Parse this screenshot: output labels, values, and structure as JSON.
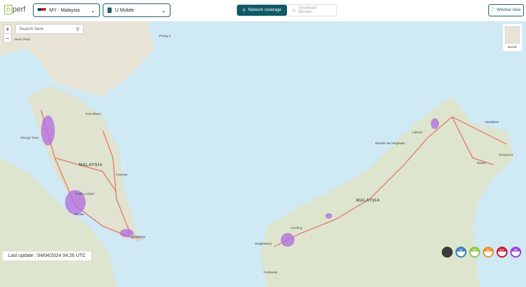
{
  "header": {
    "logo": "nperf",
    "country": "MY - Malaysia",
    "operator": "U Mobile",
    "tabs": [
      {
        "label": "Network coverage",
        "active": true
      },
      {
        "label": "Download bitrates",
        "active": false
      }
    ],
    "window_view": "Window view"
  },
  "map": {
    "search_placeholder": "Search here",
    "zoom_in": "+",
    "zoom_out": "−",
    "basemap_label": "ArcGIS",
    "labels": [
      {
        "text": "Surat Thani"
      },
      {
        "text": "Phang-4"
      },
      {
        "text": "George Town"
      },
      {
        "text": "Kota Bharu"
      },
      {
        "text": "MALAYSIA"
      },
      {
        "text": "Kuantan"
      },
      {
        "text": "Kuala Lumpur"
      },
      {
        "text": "Melaka"
      },
      {
        "text": "Singapore"
      },
      {
        "text": "Bandar Seri Begawan"
      },
      {
        "text": "Labuan"
      },
      {
        "text": "Sandakan"
      },
      {
        "text": "Tawau"
      },
      {
        "text": "Semporna"
      },
      {
        "text": "MALAYSIA"
      },
      {
        "text": "Kuching"
      },
      {
        "text": "Singkawang"
      },
      {
        "text": "Pontianak"
      }
    ]
  },
  "status": {
    "last_update": "Last update : 04/04/2024 04:26 UTC"
  },
  "legend": [
    {
      "label": "",
      "color": "#3a3a3a",
      "icon": "no-signal-icon"
    },
    {
      "label": "2G",
      "color": "#2d7fc1"
    },
    {
      "label": "3G",
      "color": "#8dc63f"
    },
    {
      "label": "4G",
      "color": "#f28c28"
    },
    {
      "label": "4G+",
      "color": "#c8102e"
    },
    {
      "label": "5G",
      "color": "#9b3fd1"
    }
  ]
}
